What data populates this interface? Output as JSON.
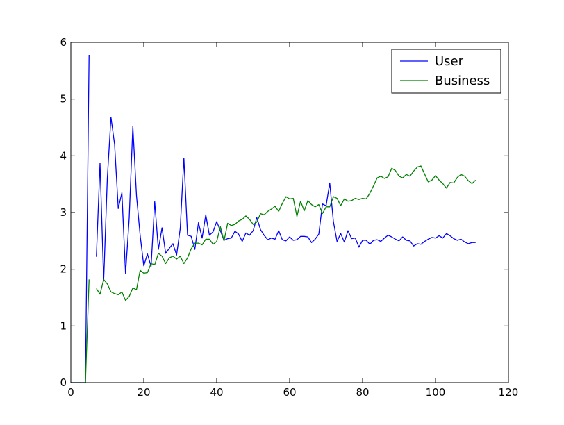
{
  "chart_data": {
    "type": "line",
    "title": "",
    "xlabel": "",
    "ylabel": "",
    "xlim": [
      0,
      120
    ],
    "ylim": [
      0,
      6
    ],
    "xticks": [
      0,
      20,
      40,
      60,
      80,
      100,
      120
    ],
    "yticks": [
      0,
      1,
      2,
      3,
      4,
      5,
      6
    ],
    "xtick_labels": [
      "0",
      "20",
      "40",
      "60",
      "80",
      "100",
      "120"
    ],
    "ytick_labels": [
      "0",
      "1",
      "2",
      "3",
      "4",
      "5",
      "6"
    ],
    "grid": false,
    "legend_position": "top-right",
    "series": [
      {
        "name": "User",
        "color": "#0000ff",
        "segments": [
          [
            [
              0,
              0
            ],
            [
              1,
              0
            ],
            [
              2,
              0
            ],
            [
              3,
              0
            ],
            [
              4,
              0
            ],
            [
              5,
              5.78
            ]
          ],
          [
            [
              7,
              2.22
            ],
            [
              8,
              3.87
            ],
            [
              9,
              1.79
            ],
            [
              10,
              3.6
            ],
            [
              11,
              4.68
            ],
            [
              12,
              4.2
            ],
            [
              13,
              3.07
            ],
            [
              14,
              3.35
            ],
            [
              15,
              1.92
            ],
            [
              16,
              2.9
            ],
            [
              17,
              4.52
            ],
            [
              18,
              3.3
            ],
            [
              19,
              2.6
            ],
            [
              20,
              2.06
            ],
            [
              21,
              2.27
            ],
            [
              22,
              2.05
            ],
            [
              23,
              3.19
            ],
            [
              24,
              2.35
            ],
            [
              25,
              2.73
            ],
            [
              26,
              2.28
            ],
            [
              27,
              2.37
            ],
            [
              28,
              2.45
            ],
            [
              29,
              2.25
            ],
            [
              30,
              2.72
            ],
            [
              31,
              3.96
            ],
            [
              32,
              2.6
            ],
            [
              33,
              2.58
            ],
            [
              34,
              2.35
            ],
            [
              35,
              2.82
            ],
            [
              36,
              2.55
            ],
            [
              37,
              2.96
            ],
            [
              38,
              2.6
            ],
            [
              39,
              2.66
            ],
            [
              40,
              2.84
            ],
            [
              41,
              2.68
            ],
            [
              42,
              2.51
            ],
            [
              43,
              2.54
            ],
            [
              44,
              2.55
            ],
            [
              45,
              2.67
            ],
            [
              46,
              2.62
            ],
            [
              47,
              2.49
            ],
            [
              48,
              2.64
            ],
            [
              49,
              2.6
            ],
            [
              50,
              2.68
            ],
            [
              51,
              2.91
            ],
            [
              52,
              2.7
            ],
            [
              53,
              2.6
            ],
            [
              54,
              2.52
            ],
            [
              55,
              2.55
            ],
            [
              56,
              2.53
            ],
            [
              57,
              2.68
            ],
            [
              58,
              2.52
            ],
            [
              59,
              2.5
            ],
            [
              60,
              2.57
            ],
            [
              61,
              2.51
            ],
            [
              62,
              2.52
            ],
            [
              63,
              2.58
            ],
            [
              64,
              2.58
            ],
            [
              65,
              2.57
            ],
            [
              66,
              2.47
            ],
            [
              67,
              2.53
            ],
            [
              68,
              2.62
            ],
            [
              69,
              3.15
            ],
            [
              70,
              3.12
            ],
            [
              71,
              3.52
            ],
            [
              72,
              2.84
            ],
            [
              73,
              2.49
            ],
            [
              74,
              2.63
            ],
            [
              75,
              2.48
            ],
            [
              76,
              2.68
            ],
            [
              77,
              2.54
            ],
            [
              78,
              2.55
            ],
            [
              79,
              2.39
            ],
            [
              80,
              2.51
            ],
            [
              81,
              2.51
            ],
            [
              82,
              2.44
            ],
            [
              83,
              2.51
            ],
            [
              84,
              2.52
            ],
            [
              85,
              2.49
            ],
            [
              86,
              2.55
            ],
            [
              87,
              2.6
            ],
            [
              88,
              2.57
            ],
            [
              89,
              2.53
            ],
            [
              90,
              2.5
            ],
            [
              91,
              2.57
            ],
            [
              92,
              2.51
            ],
            [
              93,
              2.5
            ],
            [
              94,
              2.41
            ],
            [
              95,
              2.45
            ],
            [
              96,
              2.44
            ],
            [
              97,
              2.49
            ],
            [
              98,
              2.53
            ],
            [
              99,
              2.56
            ],
            [
              100,
              2.55
            ],
            [
              101,
              2.59
            ],
            [
              102,
              2.55
            ],
            [
              103,
              2.63
            ],
            [
              104,
              2.59
            ],
            [
              105,
              2.54
            ],
            [
              106,
              2.51
            ],
            [
              107,
              2.53
            ],
            [
              108,
              2.48
            ],
            [
              109,
              2.45
            ],
            [
              110,
              2.47
            ],
            [
              111,
              2.47
            ]
          ]
        ]
      },
      {
        "name": "Business",
        "color": "#008000",
        "segments": [
          [
            [
              0,
              0
            ],
            [
              1,
              0
            ],
            [
              2,
              0
            ],
            [
              3,
              0
            ],
            [
              4,
              0
            ],
            [
              5,
              1.82
            ]
          ],
          [
            [
              7,
              1.66
            ],
            [
              8,
              1.56
            ],
            [
              9,
              1.82
            ],
            [
              10,
              1.74
            ],
            [
              11,
              1.6
            ],
            [
              12,
              1.57
            ],
            [
              13,
              1.55
            ],
            [
              14,
              1.6
            ],
            [
              15,
              1.45
            ],
            [
              16,
              1.52
            ],
            [
              17,
              1.67
            ],
            [
              18,
              1.64
            ],
            [
              19,
              1.98
            ],
            [
              20,
              1.93
            ],
            [
              21,
              1.94
            ],
            [
              22,
              2.1
            ],
            [
              23,
              2.08
            ],
            [
              24,
              2.28
            ],
            [
              25,
              2.23
            ],
            [
              26,
              2.1
            ],
            [
              27,
              2.2
            ],
            [
              28,
              2.23
            ],
            [
              29,
              2.18
            ],
            [
              30,
              2.23
            ],
            [
              31,
              2.1
            ],
            [
              32,
              2.2
            ],
            [
              33,
              2.36
            ],
            [
              34,
              2.46
            ],
            [
              35,
              2.46
            ],
            [
              36,
              2.43
            ],
            [
              37,
              2.53
            ],
            [
              38,
              2.53
            ],
            [
              39,
              2.44
            ],
            [
              40,
              2.49
            ],
            [
              41,
              2.75
            ],
            [
              42,
              2.5
            ],
            [
              43,
              2.81
            ],
            [
              44,
              2.77
            ],
            [
              45,
              2.79
            ],
            [
              46,
              2.85
            ],
            [
              47,
              2.88
            ],
            [
              48,
              2.94
            ],
            [
              49,
              2.88
            ],
            [
              50,
              2.79
            ],
            [
              51,
              2.83
            ],
            [
              52,
              2.98
            ],
            [
              53,
              2.96
            ],
            [
              54,
              3.02
            ],
            [
              55,
              3.06
            ],
            [
              56,
              3.11
            ],
            [
              57,
              3.02
            ],
            [
              58,
              3.16
            ],
            [
              59,
              3.28
            ],
            [
              60,
              3.24
            ],
            [
              61,
              3.25
            ],
            [
              62,
              2.93
            ],
            [
              63,
              3.2
            ],
            [
              64,
              3.03
            ],
            [
              65,
              3.21
            ],
            [
              66,
              3.14
            ],
            [
              67,
              3.1
            ],
            [
              68,
              3.14
            ],
            [
              69,
              2.98
            ],
            [
              70,
              3.1
            ],
            [
              71,
              3.1
            ],
            [
              72,
              3.28
            ],
            [
              73,
              3.25
            ],
            [
              74,
              3.12
            ],
            [
              75,
              3.24
            ],
            [
              76,
              3.2
            ],
            [
              77,
              3.21
            ],
            [
              78,
              3.25
            ],
            [
              79,
              3.23
            ],
            [
              80,
              3.25
            ],
            [
              81,
              3.24
            ],
            [
              82,
              3.34
            ],
            [
              83,
              3.47
            ],
            [
              84,
              3.61
            ],
            [
              85,
              3.64
            ],
            [
              86,
              3.6
            ],
            [
              87,
              3.63
            ],
            [
              88,
              3.78
            ],
            [
              89,
              3.74
            ],
            [
              90,
              3.64
            ],
            [
              91,
              3.61
            ],
            [
              92,
              3.67
            ],
            [
              93,
              3.64
            ],
            [
              94,
              3.73
            ],
            [
              95,
              3.8
            ],
            [
              96,
              3.82
            ],
            [
              97,
              3.68
            ],
            [
              98,
              3.54
            ],
            [
              99,
              3.57
            ],
            [
              100,
              3.65
            ],
            [
              101,
              3.57
            ],
            [
              102,
              3.51
            ],
            [
              103,
              3.43
            ],
            [
              104,
              3.53
            ],
            [
              105,
              3.52
            ],
            [
              106,
              3.62
            ],
            [
              107,
              3.67
            ],
            [
              108,
              3.64
            ],
            [
              109,
              3.56
            ],
            [
              110,
              3.51
            ],
            [
              111,
              3.57
            ]
          ]
        ]
      }
    ]
  }
}
